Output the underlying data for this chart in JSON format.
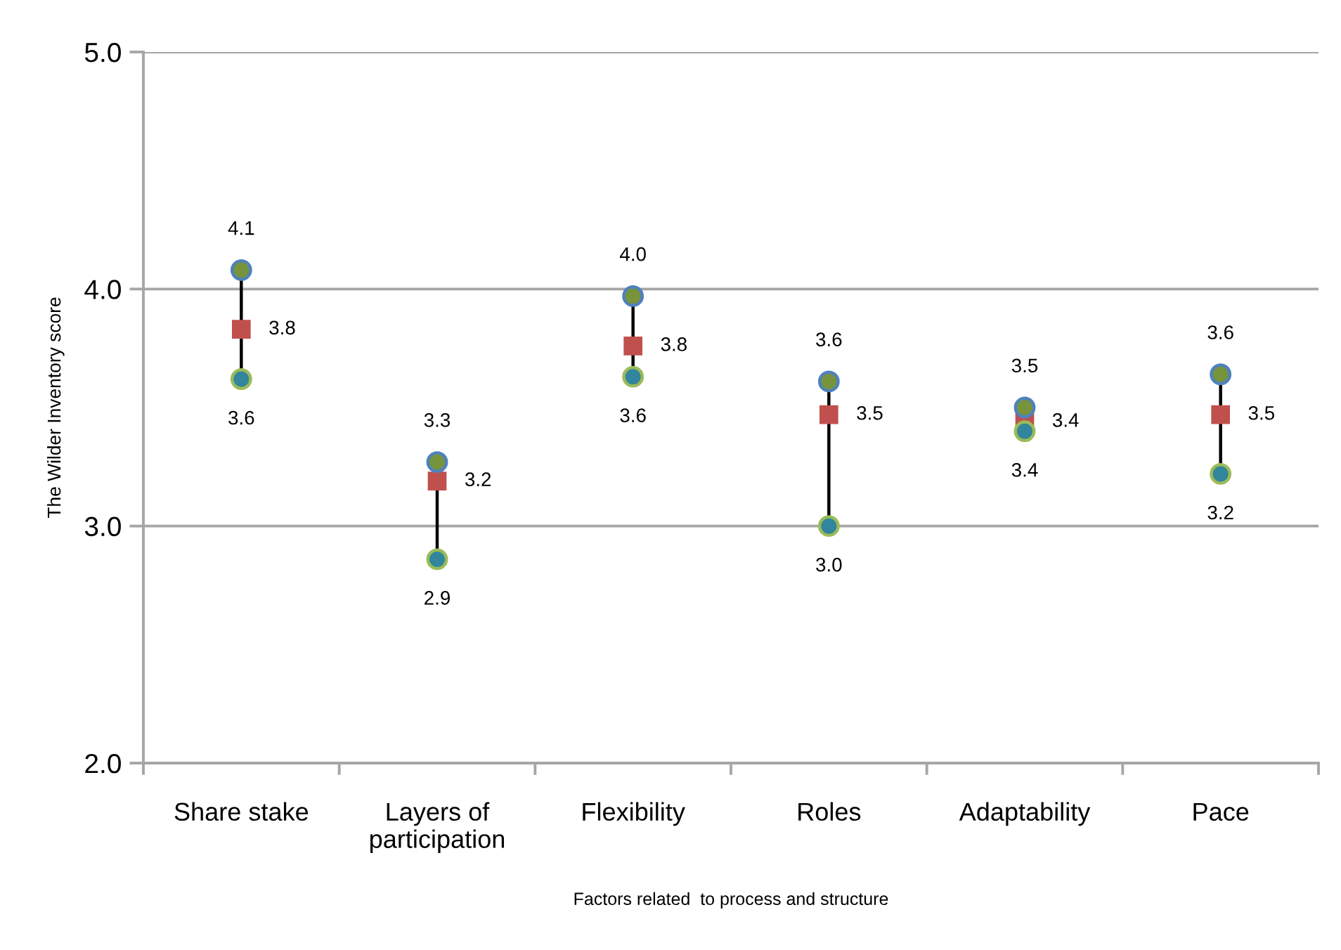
{
  "chart_data": {
    "type": "scatter",
    "xlabel": "Factors related  to process and structure",
    "ylabel": "The Wilder Inventory score",
    "categories": [
      "Share stake",
      "Layers of\nparticipation",
      "Flexibility",
      "Roles",
      "Adaptability",
      "Pace"
    ],
    "series": [
      {
        "color": "#77933c",
        "marker": "circle",
        "values": [
          4.08,
          3.27,
          3.97,
          3.61,
          3.5,
          3.64
        ],
        "value_labels": [
          "4.1",
          "3.3",
          "4.0",
          "3.6",
          "3.5",
          "3.6"
        ]
      },
      {
        "color": "#31859c",
        "marker": "circle",
        "values": [
          3.62,
          2.86,
          3.63,
          3.0,
          3.4,
          3.22
        ],
        "value_labels": [
          "3.6",
          "2.9",
          "3.6",
          "3.0",
          "3.4",
          "3.2"
        ]
      },
      {
        "color": "#c0504d",
        "marker": "square",
        "values": [
          3.83,
          3.19,
          3.76,
          3.47,
          3.44,
          3.47
        ],
        "value_labels": [
          "3.8",
          "3.2",
          "3.8",
          "3.5",
          "3.4",
          "3.5"
        ]
      }
    ],
    "line_style": "solid",
    "ylim": [
      2,
      5
    ],
    "yticks": [
      {
        "value": 2,
        "label": "2.0"
      },
      {
        "value": 3,
        "label": "3.0"
      },
      {
        "value": 4,
        "label": "4.0"
      },
      {
        "value": 5,
        "label": "5.0"
      }
    ],
    "grid": "y"
  }
}
